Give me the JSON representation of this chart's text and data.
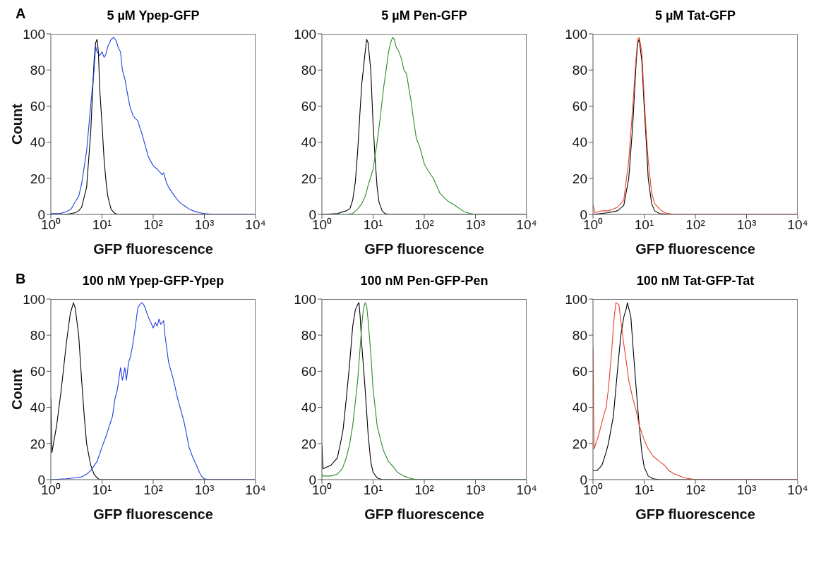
{
  "chart_data": [
    {
      "type": "line",
      "title": "5 µM Ypep-GFP",
      "xlabel": "GFP  fluorescence",
      "ylabel": "Count",
      "annotations": [
        "A"
      ],
      "log": "x",
      "xlim": [
        1,
        10000
      ],
      "ylim": [
        0,
        100
      ],
      "xticks": [
        {
          "value": 1,
          "label": "10⁰"
        },
        {
          "value": 10,
          "label": "10¹"
        },
        {
          "value": 100,
          "label": "10²"
        },
        {
          "value": 1000,
          "label": "10³"
        },
        {
          "value": 10000,
          "label": "10⁴"
        }
      ],
      "yticks": [
        0,
        20,
        40,
        60,
        80,
        100
      ],
      "series": [
        {
          "color": "#000000",
          "x": [
            1,
            2,
            3,
            3.5,
            4,
            5,
            6,
            7,
            7.5,
            8,
            8.5,
            9,
            10,
            11,
            12,
            13,
            15,
            17,
            20,
            10000
          ],
          "values": [
            0,
            0,
            1,
            2,
            4,
            15,
            45,
            85,
            95,
            97,
            90,
            70,
            50,
            30,
            18,
            10,
            3,
            1,
            0,
            0
          ]
        },
        {
          "color": "#1f3fe0",
          "x": [
            1,
            1.5,
            2,
            2.5,
            3,
            3.5,
            4,
            5,
            6,
            7,
            7.5,
            8,
            9,
            10,
            11,
            12,
            13,
            15,
            17,
            19,
            21,
            23,
            25,
            28,
            30,
            35,
            40,
            45,
            50,
            55,
            60,
            70,
            80,
            100,
            120,
            150,
            160,
            180,
            200,
            250,
            300,
            350,
            400,
            500,
            600,
            800,
            1000,
            1500,
            10000
          ],
          "values": [
            0.5,
            0.5,
            1.5,
            3,
            7,
            10,
            17,
            35,
            60,
            80,
            93,
            90,
            88,
            90,
            87,
            89,
            93,
            97,
            98,
            96,
            92,
            90,
            80,
            75,
            70,
            60,
            55,
            53,
            52,
            48,
            45,
            38,
            32,
            27,
            25,
            22,
            23,
            18,
            15,
            11,
            8,
            6,
            5,
            3,
            2,
            1,
            0.5,
            0,
            0
          ]
        }
      ]
    },
    {
      "type": "line",
      "title": "5 µM Pen-GFP",
      "xlabel": "GFP  fluorescence",
      "log": "x",
      "xlim": [
        1,
        10000
      ],
      "ylim": [
        0,
        100
      ],
      "xticks": [
        {
          "value": 1,
          "label": "10⁰"
        },
        {
          "value": 10,
          "label": "10¹"
        },
        {
          "value": 100,
          "label": "10²"
        },
        {
          "value": 1000,
          "label": "10³"
        },
        {
          "value": 10000,
          "label": "10⁴"
        }
      ],
      "yticks": [
        0,
        20,
        40,
        60,
        80,
        100
      ],
      "series": [
        {
          "color": "#000000",
          "x": [
            1,
            2,
            3,
            3.5,
            4,
            4.5,
            5,
            5.5,
            6,
            7,
            7.5,
            8,
            9,
            10,
            11,
            12,
            13,
            15,
            17,
            20,
            10000
          ],
          "values": [
            0,
            0.5,
            2,
            3,
            8,
            18,
            35,
            55,
            72,
            90,
            97,
            95,
            80,
            50,
            30,
            15,
            7,
            2,
            0.5,
            0,
            0
          ]
        },
        {
          "color": "#2a8a2a",
          "x": [
            1,
            3,
            4,
            5,
            6,
            7,
            8,
            10,
            12,
            14,
            16,
            18,
            20,
            22,
            24,
            26,
            28,
            32,
            36,
            40,
            45,
            50,
            55,
            60,
            70,
            80,
            90,
            100,
            120,
            150,
            180,
            200,
            250,
            300,
            400,
            500,
            600,
            800,
            1000,
            10000
          ],
          "values": [
            0,
            0,
            0.5,
            3,
            6,
            10,
            16,
            25,
            40,
            55,
            70,
            80,
            90,
            95,
            98,
            97,
            93,
            90,
            86,
            80,
            78,
            70,
            63,
            55,
            42,
            38,
            33,
            28,
            24,
            20,
            15,
            12,
            9,
            7,
            5,
            3,
            1.5,
            0.5,
            0,
            0
          ]
        }
      ]
    },
    {
      "type": "line",
      "title": "5 µM Tat-GFP",
      "xlabel": "GFP  fluorescence",
      "log": "x",
      "xlim": [
        1,
        10000
      ],
      "ylim": [
        0,
        100
      ],
      "xticks": [
        {
          "value": 1,
          "label": "10⁰"
        },
        {
          "value": 10,
          "label": "10¹"
        },
        {
          "value": 100,
          "label": "10²"
        },
        {
          "value": 1000,
          "label": "10³"
        },
        {
          "value": 10000,
          "label": "10⁴"
        }
      ],
      "yticks": [
        0,
        20,
        40,
        60,
        80,
        100
      ],
      "series": [
        {
          "color": "#000000",
          "x": [
            1,
            2,
            3,
            4,
            5,
            6,
            7,
            7.5,
            8,
            9,
            10,
            11,
            12,
            14,
            16,
            20,
            30,
            10000
          ],
          "values": [
            0,
            1,
            2,
            5,
            20,
            50,
            85,
            95,
            97,
            85,
            60,
            40,
            20,
            6,
            2,
            0.5,
            0,
            0
          ]
        },
        {
          "color": "#e8402a",
          "x": [
            1,
            1.1,
            1.5,
            2,
            2.5,
            3,
            4,
            5,
            6,
            7,
            7.5,
            8,
            9,
            10,
            11,
            12,
            14,
            16,
            20,
            25,
            30,
            40,
            10000
          ],
          "values": [
            5,
            1,
            2,
            2,
            3,
            4,
            8,
            30,
            60,
            88,
            97,
            98,
            90,
            65,
            45,
            30,
            12,
            6,
            3,
            1,
            0.5,
            0,
            0
          ]
        }
      ]
    },
    {
      "type": "line",
      "title": "100 nM Ypep-GFP-Ypep",
      "xlabel": "GFP  fluorescence",
      "ylabel": "Count",
      "annotations": [
        "B"
      ],
      "log": "x",
      "xlim": [
        1,
        10000
      ],
      "ylim": [
        0,
        100
      ],
      "xticks": [
        {
          "value": 1,
          "label": "10⁰"
        },
        {
          "value": 10,
          "label": "10¹"
        },
        {
          "value": 100,
          "label": "10²"
        },
        {
          "value": 1000,
          "label": "10³"
        },
        {
          "value": 10000,
          "label": "10⁴"
        }
      ],
      "yticks": [
        0,
        20,
        40,
        60,
        80,
        100
      ],
      "series": [
        {
          "color": "#000000",
          "x": [
            1,
            1.05,
            1.3,
            1.6,
            2,
            2.4,
            2.77,
            3,
            3.5,
            4,
            4.5,
            5,
            6,
            7,
            8,
            9,
            10000
          ],
          "values": [
            45,
            15,
            30,
            50,
            75,
            92,
            98,
            95,
            80,
            55,
            35,
            20,
            8,
            3,
            1,
            0,
            0
          ]
        },
        {
          "color": "#1f3fe0",
          "x": [
            1,
            2,
            3,
            4,
            5,
            6,
            8,
            10,
            12,
            14,
            16,
            18,
            20,
            23,
            25,
            28,
            30,
            33,
            36,
            40,
            45,
            50,
            55,
            60,
            65,
            70,
            80,
            90,
            100,
            110,
            120,
            130,
            140,
            160,
            170,
            200,
            250,
            300,
            350,
            400,
            450,
            500,
            600,
            700,
            800,
            900,
            1000,
            1200,
            10000
          ],
          "values": [
            0,
            0.5,
            1,
            1.5,
            3,
            5,
            10,
            18,
            24,
            30,
            35,
            45,
            50,
            62,
            55,
            62,
            55,
            65,
            68,
            75,
            85,
            95,
            97,
            98,
            97,
            95,
            90,
            87,
            84,
            87,
            85,
            89,
            86,
            88,
            80,
            65,
            55,
            45,
            38,
            32,
            25,
            18,
            12,
            8,
            4,
            1.5,
            0.5,
            0,
            0
          ]
        }
      ]
    },
    {
      "type": "line",
      "title": "100 nM Pen-GFP-Pen",
      "xlabel": "GFP  fluorescence",
      "log": "x",
      "xlim": [
        1,
        10000
      ],
      "ylim": [
        0,
        100
      ],
      "xticks": [
        {
          "value": 1,
          "label": "10⁰"
        },
        {
          "value": 10,
          "label": "10¹"
        },
        {
          "value": 100,
          "label": "10²"
        },
        {
          "value": 1000,
          "label": "10³"
        },
        {
          "value": 10000,
          "label": "10⁴"
        }
      ],
      "yticks": [
        0,
        20,
        40,
        60,
        80,
        100
      ],
      "series": [
        {
          "color": "#000000",
          "x": [
            1,
            1.05,
            1.5,
            2,
            2.3,
            2.6,
            3,
            3.5,
            4,
            4.5,
            5,
            5.3,
            5.6,
            6,
            7,
            8,
            9,
            10,
            12,
            15,
            10000
          ],
          "values": [
            19,
            6,
            8,
            12,
            20,
            28,
            45,
            65,
            85,
            94,
            97,
            98,
            90,
            75,
            50,
            25,
            10,
            4,
            1,
            0,
            0
          ]
        },
        {
          "color": "#2a8a2a",
          "x": [
            1,
            1.05,
            1.5,
            2,
            2.5,
            3,
            3.5,
            4,
            5,
            6,
            6.5,
            7,
            7.5,
            8,
            9,
            10,
            12,
            14,
            16,
            20,
            25,
            30,
            40,
            50,
            70,
            10000
          ],
          "values": [
            3,
            2,
            2,
            3,
            6,
            12,
            20,
            30,
            55,
            85,
            95,
            98,
            96,
            88,
            70,
            50,
            30,
            22,
            16,
            10,
            7,
            4,
            2,
            1,
            0,
            0
          ]
        }
      ]
    },
    {
      "type": "line",
      "title": "100 nM Tat-GFP-Tat",
      "xlabel": "GFP  fluorescence",
      "log": "x",
      "xlim": [
        1,
        10000
      ],
      "ylim": [
        0,
        100
      ],
      "xticks": [
        {
          "value": 1,
          "label": "10⁰"
        },
        {
          "value": 10,
          "label": "10¹"
        },
        {
          "value": 100,
          "label": "10²"
        },
        {
          "value": 1000,
          "label": "10³"
        },
        {
          "value": 10000,
          "label": "10⁴"
        }
      ],
      "yticks": [
        0,
        20,
        40,
        60,
        80,
        100
      ],
      "series": [
        {
          "color": "#000000",
          "x": [
            1,
            1.2,
            1.5,
            1.8,
            2,
            2.5,
            3,
            3.5,
            4,
            4.5,
            4.7,
            5.5,
            6,
            7,
            8,
            9,
            10,
            12,
            15,
            20,
            10000
          ],
          "values": [
            5,
            5,
            8,
            15,
            20,
            35,
            60,
            80,
            90,
            95,
            98,
            90,
            75,
            50,
            30,
            15,
            7,
            2,
            0.5,
            0,
            0
          ]
        },
        {
          "color": "#e8402a",
          "x": [
            1,
            1.05,
            1.3,
            1.6,
            1.8,
            2,
            2.3,
            2.6,
            2.8,
            3.2,
            3.5,
            4,
            4.5,
            5,
            6,
            7,
            8,
            10,
            12,
            15,
            20,
            25,
            30,
            40,
            50,
            60,
            80,
            100,
            10000
          ],
          "values": [
            73,
            17,
            25,
            35,
            40,
            50,
            70,
            90,
            98,
            97,
            88,
            75,
            65,
            55,
            45,
            38,
            30,
            22,
            17,
            13,
            10,
            8,
            5,
            3,
            2,
            1,
            0.5,
            0,
            0
          ]
        }
      ]
    }
  ]
}
